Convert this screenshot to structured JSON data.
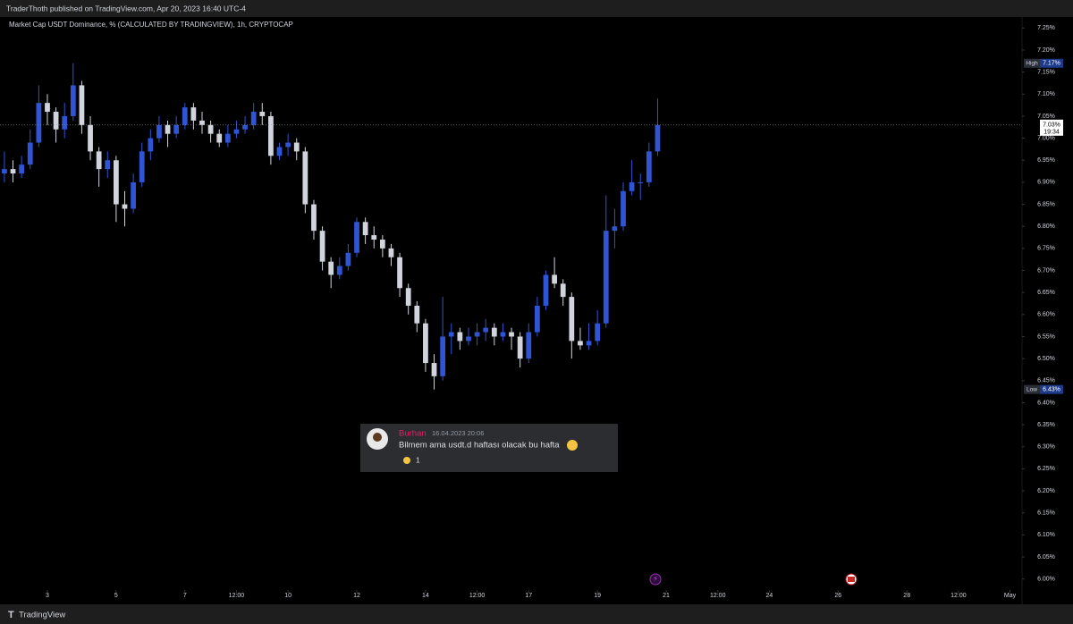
{
  "header": {
    "text": "TraderThoth published on TradingView.com, Apr 20, 2023 16:40 UTC-4"
  },
  "footer": {
    "brand": "TradingView"
  },
  "chart_data": {
    "type": "candlestick",
    "title": "Market Cap USDT Dominance, % (CALCULATED BY TRADINGVIEW), 1h, CRYPTOCAP",
    "up_color": "#2f54d4",
    "down_color": "#d1d4dc",
    "x": [
      1.75,
      2,
      2.25,
      2.5,
      2.75,
      3,
      3.25,
      3.5,
      3.75,
      4,
      4.25,
      4.5,
      4.75,
      5,
      5.25,
      5.5,
      5.75,
      6,
      6.25,
      6.5,
      6.75,
      7,
      7.25,
      7.5,
      7.75,
      8,
      8.25,
      8.5,
      8.75,
      9,
      9.25,
      9.5,
      9.75,
      10,
      10.25,
      10.5,
      10.75,
      11,
      11.25,
      11.5,
      11.75,
      12,
      12.25,
      12.5,
      12.75,
      13,
      13.25,
      13.5,
      13.75,
      14,
      14.25,
      14.5,
      14.75,
      15,
      15.25,
      15.5,
      15.75,
      16,
      16.25,
      16.5,
      16.75,
      17,
      17.25,
      17.5,
      17.75,
      18,
      18.25,
      18.5,
      18.75,
      19,
      19.25,
      19.5,
      19.75,
      20,
      20.25,
      20.5,
      20.75
    ],
    "ohlc": [
      [
        6.92,
        6.97,
        6.9,
        6.93
      ],
      [
        6.93,
        6.95,
        6.9,
        6.92
      ],
      [
        6.92,
        6.96,
        6.91,
        6.94
      ],
      [
        6.94,
        7.02,
        6.93,
        6.99
      ],
      [
        6.99,
        7.12,
        6.98,
        7.08
      ],
      [
        7.08,
        7.1,
        7.03,
        7.06
      ],
      [
        7.06,
        7.07,
        6.99,
        7.02
      ],
      [
        7.02,
        7.08,
        7.0,
        7.05
      ],
      [
        7.05,
        7.17,
        7.04,
        7.12
      ],
      [
        7.12,
        7.13,
        7.01,
        7.03
      ],
      [
        7.03,
        7.05,
        6.95,
        6.97
      ],
      [
        6.97,
        6.98,
        6.89,
        6.93
      ],
      [
        6.93,
        6.97,
        6.91,
        6.95
      ],
      [
        6.95,
        6.96,
        6.81,
        6.85
      ],
      [
        6.85,
        6.88,
        6.8,
        6.84
      ],
      [
        6.84,
        6.92,
        6.83,
        6.9
      ],
      [
        6.9,
        6.99,
        6.89,
        6.97
      ],
      [
        6.97,
        7.02,
        6.95,
        7.0
      ],
      [
        7.0,
        7.05,
        6.99,
        7.03
      ],
      [
        7.03,
        7.04,
        6.98,
        7.01
      ],
      [
        7.01,
        7.05,
        7.0,
        7.03
      ],
      [
        7.03,
        7.08,
        7.02,
        7.07
      ],
      [
        7.07,
        7.08,
        7.02,
        7.04
      ],
      [
        7.04,
        7.06,
        7.01,
        7.03
      ],
      [
        7.03,
        7.04,
        6.99,
        7.01
      ],
      [
        7.01,
        7.02,
        6.98,
        6.99
      ],
      [
        6.99,
        7.03,
        6.98,
        7.01
      ],
      [
        7.01,
        7.04,
        7.0,
        7.02
      ],
      [
        7.02,
        7.05,
        7.01,
        7.03
      ],
      [
        7.03,
        7.08,
        7.02,
        7.06
      ],
      [
        7.06,
        7.08,
        7.03,
        7.05
      ],
      [
        7.05,
        7.06,
        6.94,
        6.96
      ],
      [
        6.96,
        6.99,
        6.95,
        6.98
      ],
      [
        6.98,
        7.01,
        6.96,
        6.99
      ],
      [
        6.99,
        7.0,
        6.95,
        6.97
      ],
      [
        6.97,
        6.98,
        6.83,
        6.85
      ],
      [
        6.85,
        6.86,
        6.77,
        6.79
      ],
      [
        6.79,
        6.8,
        6.7,
        6.72
      ],
      [
        6.72,
        6.73,
        6.66,
        6.69
      ],
      [
        6.69,
        6.73,
        6.68,
        6.71
      ],
      [
        6.71,
        6.76,
        6.7,
        6.74
      ],
      [
        6.74,
        6.82,
        6.73,
        6.81
      ],
      [
        6.81,
        6.82,
        6.76,
        6.78
      ],
      [
        6.78,
        6.8,
        6.75,
        6.77
      ],
      [
        6.77,
        6.78,
        6.73,
        6.75
      ],
      [
        6.75,
        6.76,
        6.71,
        6.73
      ],
      [
        6.73,
        6.74,
        6.64,
        6.66
      ],
      [
        6.66,
        6.67,
        6.6,
        6.62
      ],
      [
        6.62,
        6.63,
        6.56,
        6.58
      ],
      [
        6.58,
        6.59,
        6.47,
        6.49
      ],
      [
        6.49,
        6.51,
        6.43,
        6.46
      ],
      [
        6.46,
        6.64,
        6.45,
        6.55
      ],
      [
        6.55,
        6.58,
        6.51,
        6.56
      ],
      [
        6.56,
        6.57,
        6.52,
        6.54
      ],
      [
        6.54,
        6.57,
        6.53,
        6.55
      ],
      [
        6.55,
        6.58,
        6.53,
        6.56
      ],
      [
        6.56,
        6.59,
        6.54,
        6.57
      ],
      [
        6.57,
        6.58,
        6.53,
        6.55
      ],
      [
        6.55,
        6.58,
        6.54,
        6.56
      ],
      [
        6.56,
        6.57,
        6.52,
        6.55
      ],
      [
        6.55,
        6.56,
        6.48,
        6.5
      ],
      [
        6.5,
        6.58,
        6.49,
        6.56
      ],
      [
        6.56,
        6.64,
        6.55,
        6.62
      ],
      [
        6.62,
        6.7,
        6.61,
        6.69
      ],
      [
        6.69,
        6.73,
        6.66,
        6.67
      ],
      [
        6.67,
        6.68,
        6.62,
        6.64
      ],
      [
        6.64,
        6.65,
        6.5,
        6.54
      ],
      [
        6.54,
        6.57,
        6.52,
        6.53
      ],
      [
        6.53,
        6.58,
        6.52,
        6.54
      ],
      [
        6.54,
        6.61,
        6.53,
        6.58
      ],
      [
        6.58,
        6.87,
        6.57,
        6.79
      ],
      [
        6.79,
        6.84,
        6.75,
        6.8
      ],
      [
        6.8,
        6.9,
        6.79,
        6.88
      ],
      [
        6.88,
        6.95,
        6.87,
        6.9
      ],
      [
        6.9,
        6.92,
        6.86,
        6.9
      ],
      [
        6.9,
        6.99,
        6.89,
        6.97
      ],
      [
        6.97,
        7.09,
        6.96,
        7.03
      ]
    ],
    "xlim": [
      1.622,
      31.35
    ],
    "xticks": [
      3,
      5,
      7,
      {
        "value": 8.5,
        "label": "12:00"
      },
      10,
      12,
      14,
      {
        "value": 15.5,
        "label": "12:00"
      },
      17,
      19,
      21,
      {
        "value": 22.5,
        "label": "12:00"
      },
      24,
      26,
      28,
      {
        "value": 29.5,
        "label": "12:00"
      },
      {
        "value": 31,
        "label": "May"
      }
    ],
    "ylim": [
      5.975,
      7.275
    ],
    "yticks": [
      {
        "value": 6.0,
        "label": "6.00%"
      },
      {
        "value": 6.05,
        "label": "6.05%"
      },
      {
        "value": 6.1,
        "label": "6.10%"
      },
      {
        "value": 6.15,
        "label": "6.15%"
      },
      {
        "value": 6.2,
        "label": "6.20%"
      },
      {
        "value": 6.25,
        "label": "6.25%"
      },
      {
        "value": 6.3,
        "label": "6.30%"
      },
      {
        "value": 6.35,
        "label": "6.35%"
      },
      {
        "value": 6.4,
        "label": "6.40%"
      },
      {
        "value": 6.45,
        "label": "6.45%"
      },
      {
        "value": 6.5,
        "label": "6.50%"
      },
      {
        "value": 6.55,
        "label": "6.55%"
      },
      {
        "value": 6.6,
        "label": "6.60%"
      },
      {
        "value": 6.65,
        "label": "6.65%"
      },
      {
        "value": 6.7,
        "label": "6.70%"
      },
      {
        "value": 6.75,
        "label": "6.75%"
      },
      {
        "value": 6.8,
        "label": "6.80%"
      },
      {
        "value": 6.85,
        "label": "6.85%"
      },
      {
        "value": 6.9,
        "label": "6.90%"
      },
      {
        "value": 6.95,
        "label": "6.95%"
      },
      {
        "value": 7.0,
        "label": "7.00%"
      },
      {
        "value": 7.05,
        "label": "7.05%"
      },
      {
        "value": 7.1,
        "label": "7.10%"
      },
      {
        "value": 7.15,
        "label": "7.15%"
      },
      {
        "value": 7.2,
        "label": "7.20%"
      },
      {
        "value": 7.25,
        "label": "7.25%"
      }
    ],
    "high_marker": {
      "label": "High",
      "value": 7.17,
      "value_label": "7.17%"
    },
    "low_marker": {
      "label": "Low",
      "value": 6.43,
      "value_label": "6.43%"
    },
    "last_price": {
      "value": 7.03,
      "value_label": "7.03%",
      "countdown": "19:34"
    }
  },
  "comment": {
    "author": "Burhan",
    "timestamp": "16.04.2023 20:06",
    "text": "Bilmem ama usdt.d haftası olacak bu hafta",
    "reaction_count": "1"
  }
}
